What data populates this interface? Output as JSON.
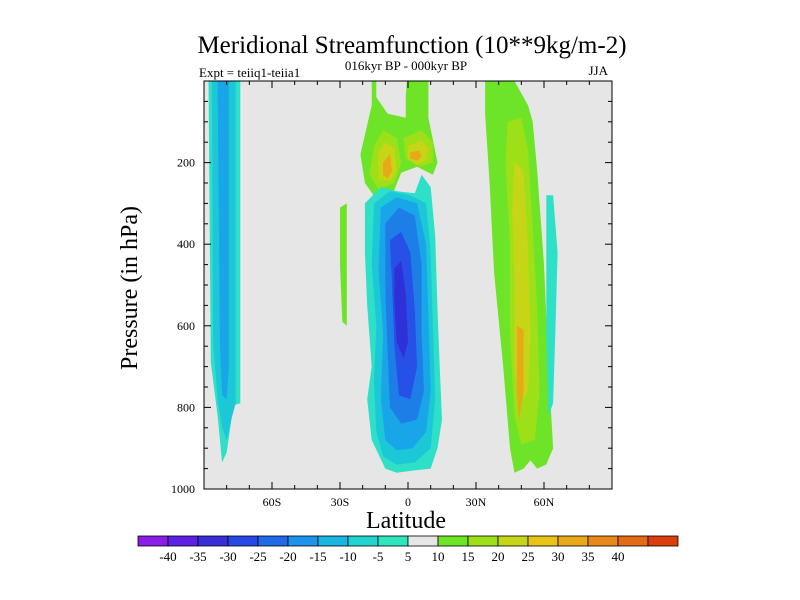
{
  "chart_data": {
    "type": "contour",
    "title": "Meridional Streamfunction (10**9kg/m-2)",
    "subtitle": "016kyr BP - 000kyr BP",
    "left_label": "Expt = teiiq1-teiia1",
    "right_label": "JJA",
    "xlabel": "Latitude",
    "ylabel": "Pressure (in hPa)",
    "xlim": [
      -90,
      90
    ],
    "ylim": [
      1000,
      0
    ],
    "y_scale": "linear",
    "x_ticks": [
      {
        "value": -60,
        "label": "60S"
      },
      {
        "value": -30,
        "label": "30S"
      },
      {
        "value": 0,
        "label": "0"
      },
      {
        "value": 30,
        "label": "30N"
      },
      {
        "value": 60,
        "label": "60N"
      }
    ],
    "y_ticks": [
      {
        "value": 200,
        "label": "200"
      },
      {
        "value": 400,
        "label": "400"
      },
      {
        "value": 600,
        "label": "600"
      },
      {
        "value": 800,
        "label": "800"
      },
      {
        "value": 1000,
        "label": "1000"
      }
    ],
    "background_level": "-5 to 5",
    "colors": {
      "background": "#e6e6e6",
      "neg_1": "#2ee0c8",
      "neg_2": "#1cc8d8",
      "neg_3": "#18a6e8",
      "neg_4": "#1e7ee8",
      "neg_5": "#2650e6",
      "neg_6": "#3030d8",
      "pos_1": "#6ee428",
      "pos_2": "#9ee018",
      "pos_3": "#c6d616",
      "pos_4": "#e8a818",
      "pos_5": "#e88818"
    },
    "regions": [
      {
        "name": "antarctic-negative-band",
        "fill": "neg_1",
        "points": [
          [
            -88,
            0
          ],
          [
            -74,
            0
          ],
          [
            -74,
            790
          ],
          [
            -77,
            795
          ],
          [
            -80,
            910
          ],
          [
            -82,
            935
          ],
          [
            -84,
            820
          ],
          [
            -87,
            690
          ]
        ]
      },
      {
        "name": "antarctic-negative-band-inner",
        "fill": "neg_2",
        "points": [
          [
            -86.5,
            0
          ],
          [
            -76,
            0
          ],
          [
            -76,
            790
          ],
          [
            -78,
            830
          ],
          [
            -80,
            880
          ],
          [
            -82,
            850
          ],
          [
            -84,
            780
          ],
          [
            -86,
            640
          ]
        ]
      },
      {
        "name": "antarctic-negative-band-core",
        "fill": "neg_3",
        "points": [
          [
            -84,
            0
          ],
          [
            -79,
            0
          ],
          [
            -79,
            700
          ],
          [
            -80,
            780
          ],
          [
            -82,
            770
          ],
          [
            -83,
            650
          ]
        ]
      },
      {
        "name": "midlat-positive-cell",
        "fill": "pos_1",
        "points": [
          [
            -30,
            310
          ],
          [
            -27,
            300
          ],
          [
            -27,
            600
          ],
          [
            -29,
            590
          ],
          [
            -30,
            450
          ]
        ]
      },
      {
        "name": "upper-tropical-positive",
        "fill": "pos_1",
        "points": [
          [
            -16,
            0
          ],
          [
            -14,
            0
          ],
          [
            -14,
            40
          ],
          [
            -9,
            80
          ],
          [
            -1,
            90
          ],
          [
            -1,
            40
          ],
          [
            -0.5,
            0
          ],
          [
            9,
            0
          ],
          [
            9,
            90
          ],
          [
            13,
            200
          ],
          [
            11,
            230
          ],
          [
            4,
            210
          ],
          [
            -3,
            225
          ],
          [
            -7,
            280
          ],
          [
            -14,
            290
          ],
          [
            -19,
            250
          ],
          [
            -21,
            180
          ],
          [
            -16,
            60
          ]
        ]
      },
      {
        "name": "upper-tropical-positive-l2",
        "fill": "pos_2",
        "points": [
          [
            -15,
            160
          ],
          [
            -11,
            120
          ],
          [
            -5,
            140
          ],
          [
            -3,
            200
          ],
          [
            -6,
            250
          ],
          [
            -13,
            265
          ],
          [
            -17,
            230
          ]
        ]
      },
      {
        "name": "upper-tropical-positive-l2b",
        "fill": "pos_2",
        "points": [
          [
            -2,
            140
          ],
          [
            6,
            120
          ],
          [
            11,
            150
          ],
          [
            11,
            200
          ],
          [
            5,
            210
          ],
          [
            -1,
            190
          ]
        ]
      },
      {
        "name": "upper-tropical-positive-l3",
        "fill": "pos_3",
        "points": [
          [
            -13,
            175
          ],
          [
            -10,
            150
          ],
          [
            -6,
            165
          ],
          [
            -5,
            220
          ],
          [
            -8,
            245
          ],
          [
            -13,
            240
          ]
        ]
      },
      {
        "name": "upper-tropical-positive-l3b",
        "fill": "pos_3",
        "points": [
          [
            0,
            160
          ],
          [
            6,
            145
          ],
          [
            9,
            165
          ],
          [
            8,
            195
          ],
          [
            4,
            205
          ],
          [
            0,
            190
          ]
        ]
      },
      {
        "name": "upper-tropical-positive-l4",
        "fill": "pos_4",
        "points": [
          [
            -11,
            200
          ],
          [
            -8,
            180
          ],
          [
            -7,
            220
          ],
          [
            -9,
            240
          ],
          [
            -11,
            230
          ]
        ]
      },
      {
        "name": "upper-tropical-positive-l4b",
        "fill": "pos_4",
        "points": [
          [
            1,
            175
          ],
          [
            5,
            170
          ],
          [
            6,
            185
          ],
          [
            4,
            195
          ],
          [
            1,
            190
          ]
        ]
      },
      {
        "name": "tropical-negative-cell",
        "fill": "neg_1",
        "points": [
          [
            -19,
            300
          ],
          [
            -12,
            260
          ],
          [
            -5,
            270
          ],
          [
            3,
            275
          ],
          [
            6,
            230
          ],
          [
            10,
            260
          ],
          [
            12,
            380
          ],
          [
            13,
            560
          ],
          [
            14,
            700
          ],
          [
            15,
            830
          ],
          [
            13,
            900
          ],
          [
            10,
            950
          ],
          [
            2,
            955
          ],
          [
            -5,
            960
          ],
          [
            -10,
            950
          ],
          [
            -16,
            880
          ],
          [
            -18,
            780
          ],
          [
            -16,
            700
          ],
          [
            -18,
            550
          ],
          [
            -19,
            420
          ]
        ]
      },
      {
        "name": "tropical-negative-cell-l2",
        "fill": "neg_2",
        "points": [
          [
            -15,
            300
          ],
          [
            -8,
            270
          ],
          [
            1,
            280
          ],
          [
            8,
            300
          ],
          [
            10,
            420
          ],
          [
            11,
            600
          ],
          [
            12,
            780
          ],
          [
            10,
            900
          ],
          [
            3,
            935
          ],
          [
            -5,
            940
          ],
          [
            -11,
            920
          ],
          [
            -14,
            860
          ],
          [
            -15,
            740
          ],
          [
            -14,
            600
          ],
          [
            -16,
            450
          ]
        ]
      },
      {
        "name": "tropical-negative-cell-l3",
        "fill": "neg_3",
        "points": [
          [
            -12,
            310
          ],
          [
            -5,
            285
          ],
          [
            4,
            300
          ],
          [
            8,
            400
          ],
          [
            9,
            580
          ],
          [
            10,
            760
          ],
          [
            8,
            860
          ],
          [
            2,
            900
          ],
          [
            -5,
            905
          ],
          [
            -10,
            880
          ],
          [
            -12,
            780
          ],
          [
            -11,
            620
          ],
          [
            -13,
            460
          ]
        ]
      },
      {
        "name": "tropical-negative-cell-l4",
        "fill": "neg_4",
        "points": [
          [
            -10,
            350
          ],
          [
            -4,
            310
          ],
          [
            3,
            330
          ],
          [
            6,
            450
          ],
          [
            6,
            620
          ],
          [
            7,
            760
          ],
          [
            4,
            830
          ],
          [
            -3,
            840
          ],
          [
            -8,
            800
          ],
          [
            -9,
            660
          ],
          [
            -10,
            520
          ]
        ]
      },
      {
        "name": "tropical-negative-cell-l5",
        "fill": "neg_5",
        "points": [
          [
            -8,
            390
          ],
          [
            -3,
            370
          ],
          [
            1,
            420
          ],
          [
            3,
            560
          ],
          [
            4,
            700
          ],
          [
            1,
            780
          ],
          [
            -4,
            770
          ],
          [
            -6,
            650
          ],
          [
            -7,
            500
          ]
        ]
      },
      {
        "name": "tropical-negative-cell-l6",
        "fill": "neg_6",
        "points": [
          [
            -6,
            460
          ],
          [
            -3,
            440
          ],
          [
            -1,
            520
          ],
          [
            0,
            640
          ],
          [
            -2,
            680
          ],
          [
            -5,
            640
          ],
          [
            -6,
            540
          ]
        ]
      },
      {
        "name": "northern-positive-band",
        "fill": "pos_1",
        "points": [
          [
            34,
            0
          ],
          [
            47,
            0
          ],
          [
            50,
            30
          ],
          [
            53,
            60
          ],
          [
            55,
            100
          ],
          [
            57,
            220
          ],
          [
            60,
            450
          ],
          [
            62,
            700
          ],
          [
            64,
            900
          ],
          [
            61,
            940
          ],
          [
            57,
            950
          ],
          [
            54,
            930
          ],
          [
            51,
            950
          ],
          [
            47,
            960
          ],
          [
            45,
            900
          ],
          [
            42,
            700
          ],
          [
            38,
            470
          ],
          [
            36,
            250
          ],
          [
            34,
            80
          ]
        ]
      },
      {
        "name": "northern-positive-band-l2",
        "fill": "pos_2",
        "points": [
          [
            44,
            100
          ],
          [
            50,
            90
          ],
          [
            53,
            170
          ],
          [
            55,
            360
          ],
          [
            57,
            560
          ],
          [
            58,
            760
          ],
          [
            56,
            880
          ],
          [
            50,
            890
          ],
          [
            47,
            820
          ],
          [
            45,
            620
          ],
          [
            45,
            400
          ],
          [
            43,
            200
          ]
        ]
      },
      {
        "name": "northern-positive-band-l3",
        "fill": "pos_3",
        "points": [
          [
            47,
            200
          ],
          [
            51,
            220
          ],
          [
            53,
            420
          ],
          [
            54,
            620
          ],
          [
            53,
            760
          ],
          [
            49,
            790
          ],
          [
            47,
            700
          ],
          [
            47,
            500
          ],
          [
            46,
            320
          ]
        ]
      },
      {
        "name": "northern-positive-band-l4",
        "fill": "pos_4",
        "points": [
          [
            48,
            600
          ],
          [
            51,
            610
          ],
          [
            51,
            760
          ],
          [
            49,
            830
          ],
          [
            48,
            760
          ]
        ]
      },
      {
        "name": "northern-negative-band",
        "fill": "neg_1",
        "points": [
          [
            61,
            280
          ],
          [
            64,
            280
          ],
          [
            66,
            420
          ],
          [
            65,
            620
          ],
          [
            64,
            790
          ],
          [
            62,
            820
          ],
          [
            61,
            600
          ]
        ]
      }
    ],
    "colorbar": {
      "levels": [
        "-40",
        "-35",
        "-30",
        "-25",
        "-20",
        "-15",
        "-10",
        "-5",
        "5",
        "10",
        "15",
        "20",
        "25",
        "30",
        "35",
        "40"
      ],
      "colors": [
        "#8a1ee8",
        "#5f20e6",
        "#3a2ed8",
        "#2648e6",
        "#1e6ae8",
        "#1a94ec",
        "#1cb4e0",
        "#22d4d0",
        "#2ee6be",
        "#e6e6e6",
        "#6ee428",
        "#9ee018",
        "#c6d616",
        "#e8c416",
        "#e8a818",
        "#e88818",
        "#e46a14",
        "#dc3c0e"
      ]
    }
  }
}
